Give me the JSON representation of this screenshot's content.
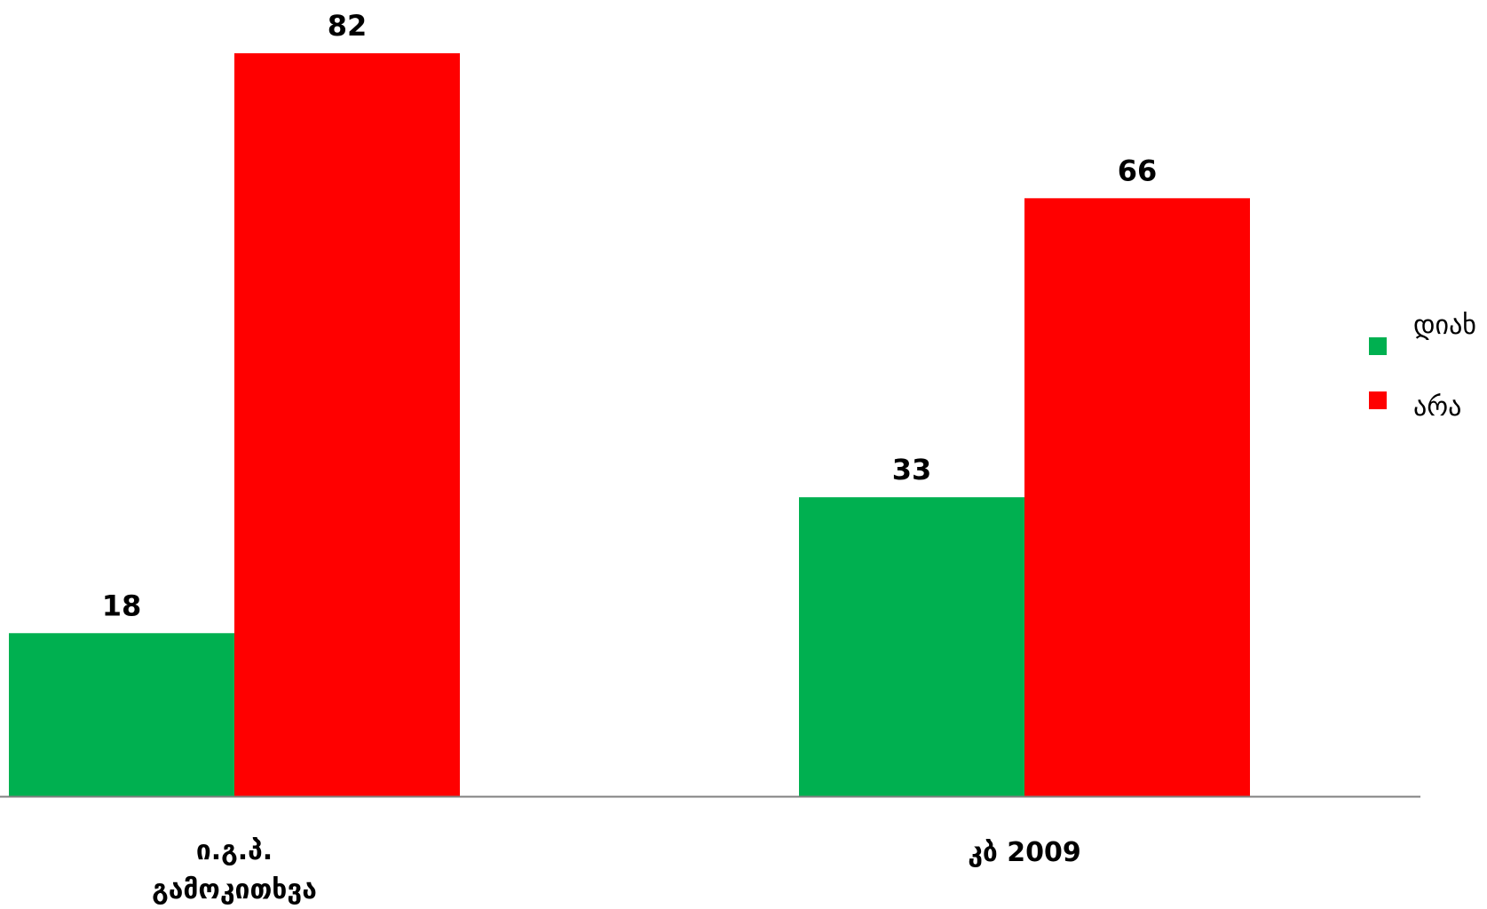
{
  "chart_data": {
    "type": "bar",
    "categories": [
      [
        "ი.გ.პ.",
        "გამოკითხვა"
      ],
      [
        "კბ 2009"
      ]
    ],
    "series": [
      {
        "name": "დიახ",
        "values": [
          18,
          33
        ],
        "color": "#00B050"
      },
      {
        "name": "არა",
        "values": [
          82,
          66
        ],
        "color": "#FF0000"
      }
    ],
    "title": "",
    "xlabel": "",
    "ylabel": "",
    "ylim": [
      0,
      82
    ],
    "grid": false,
    "legend_position": "right",
    "axis_color": "#808080"
  }
}
